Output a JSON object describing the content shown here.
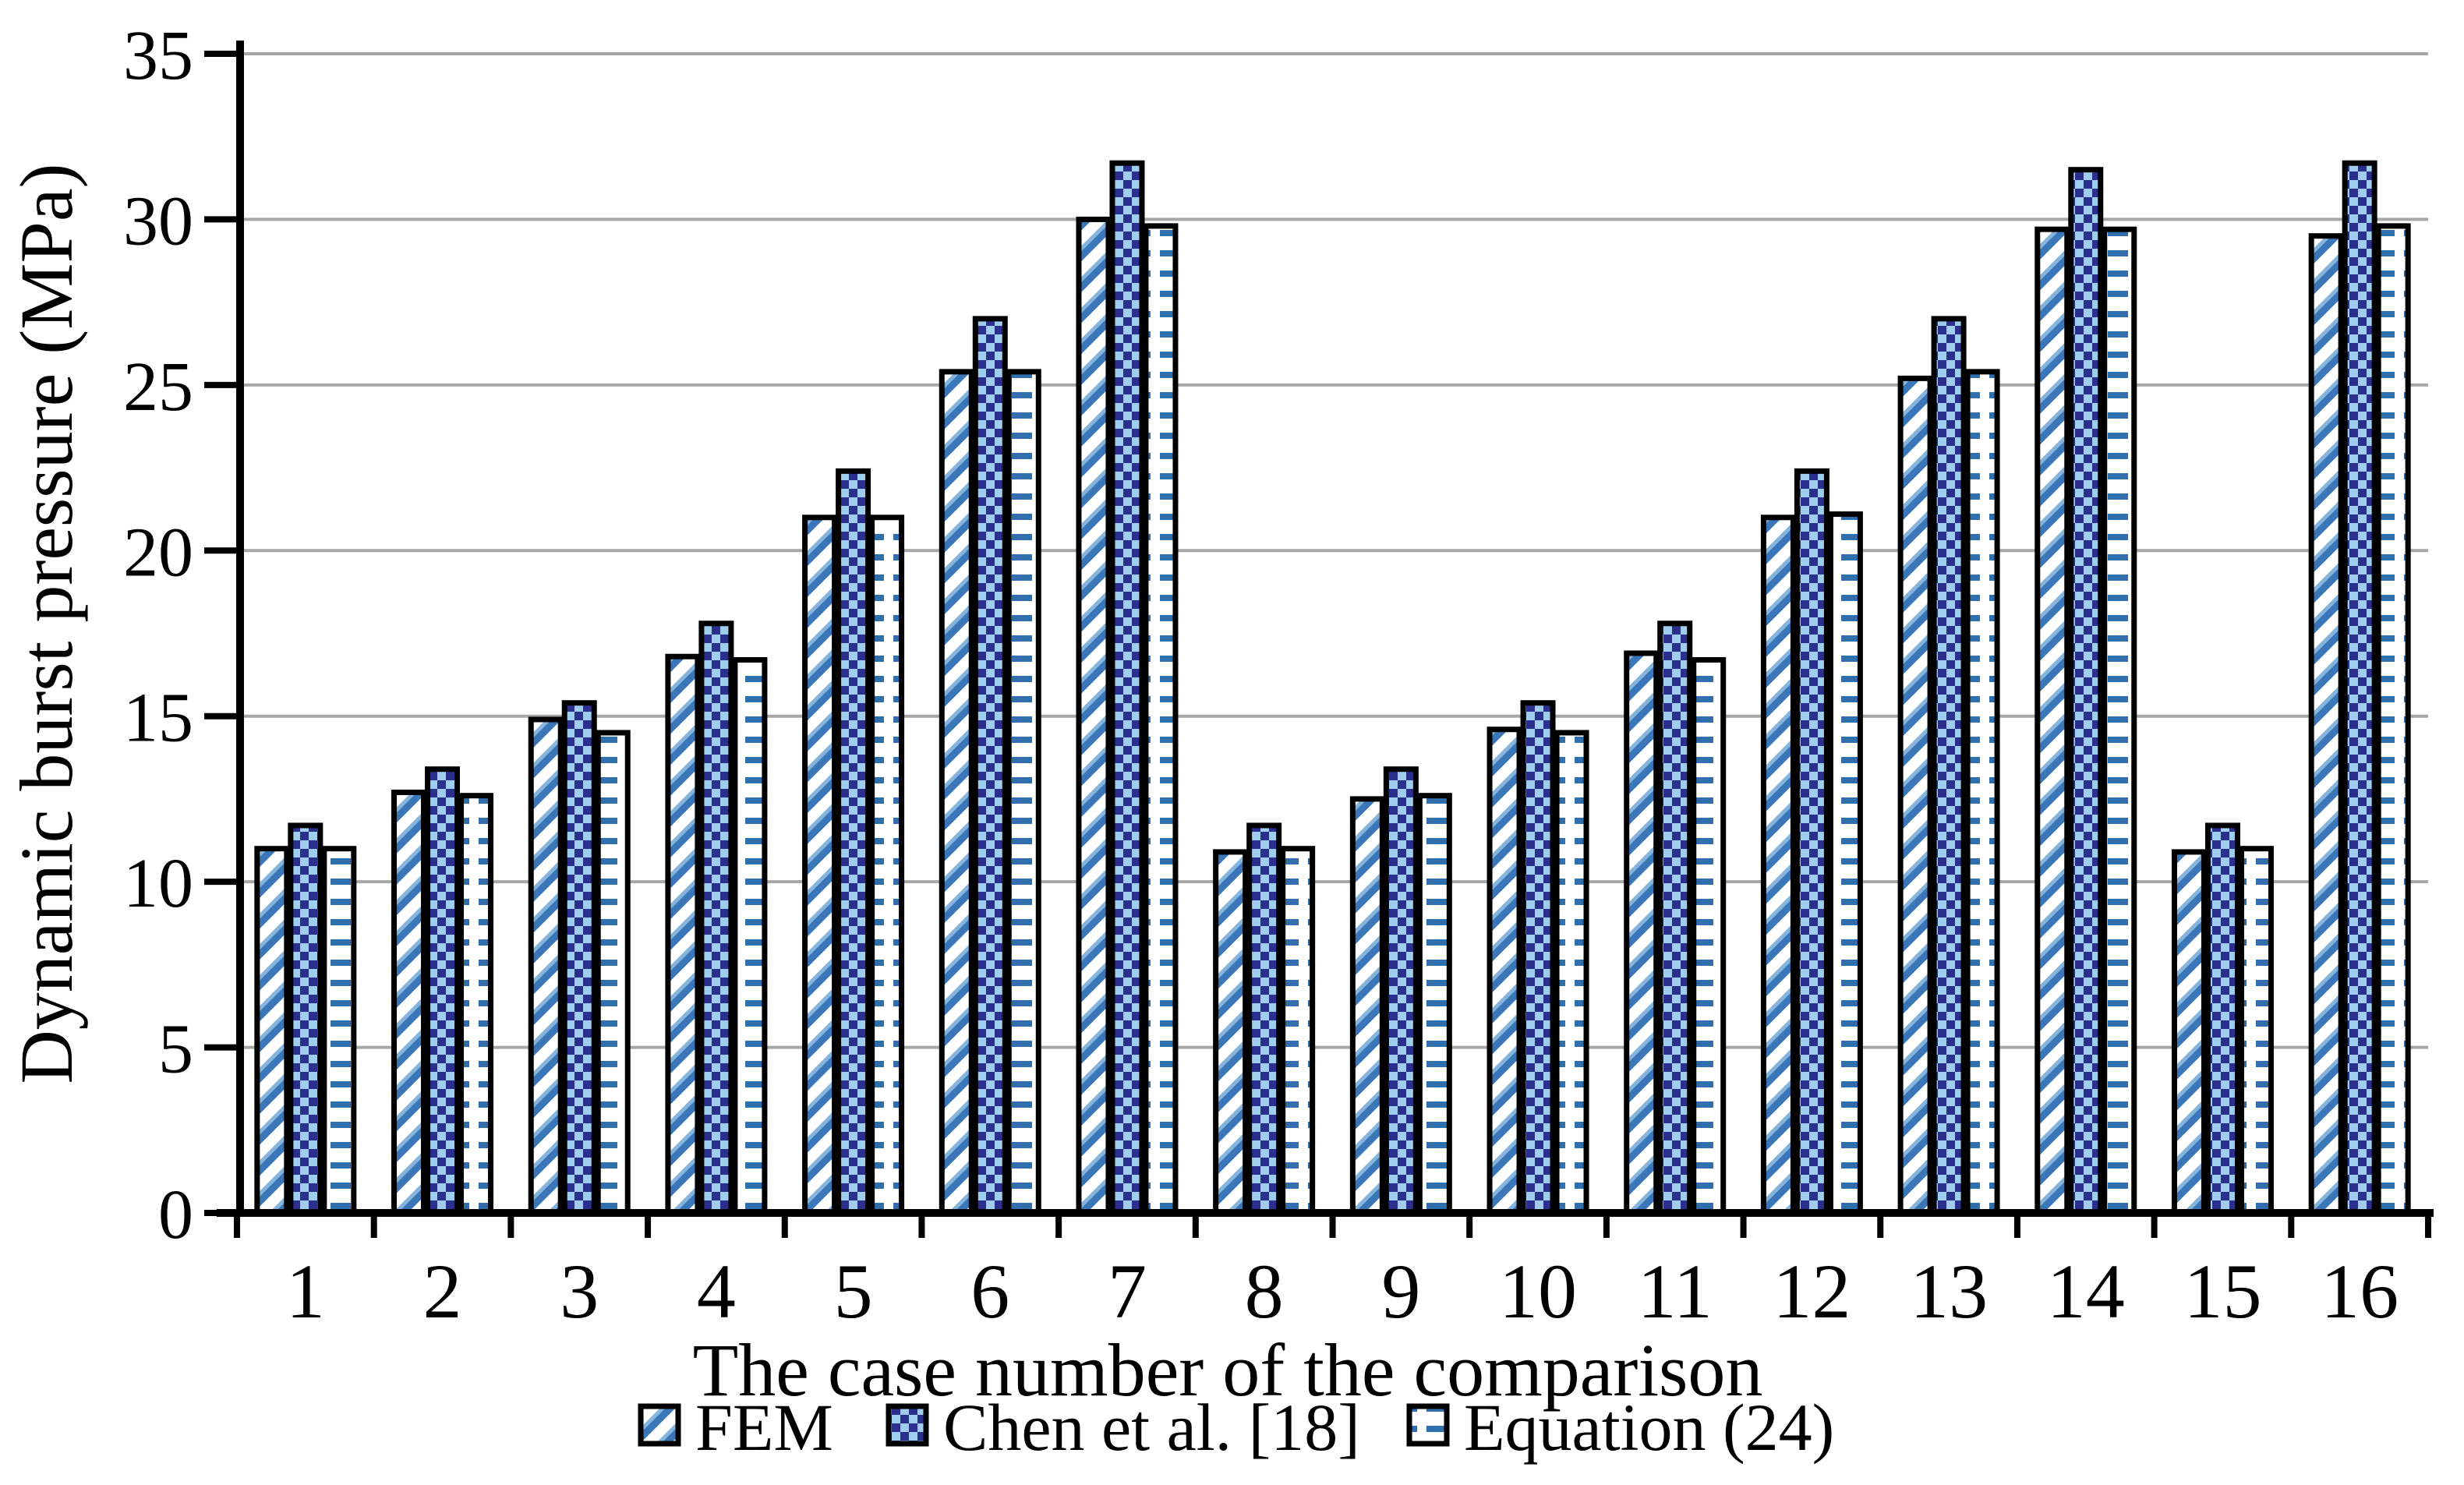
{
  "chart_data": {
    "type": "bar",
    "title": "",
    "xlabel": "The case number of the comparison",
    "ylabel": "Dynamic burst pressure (MPa)",
    "categories": [
      "1",
      "2",
      "3",
      "4",
      "5",
      "6",
      "7",
      "8",
      "9",
      "10",
      "11",
      "12",
      "13",
      "14",
      "15",
      "16"
    ],
    "ylim": [
      0,
      35
    ],
    "yticks": [
      0,
      5,
      10,
      15,
      20,
      25,
      30,
      35
    ],
    "grid": "horizontal-solid",
    "legend_position": "bottom-center",
    "series": [
      {
        "name": "FEM",
        "pattern": "diagonal-stripes",
        "values": [
          11.0,
          12.7,
          14.9,
          16.8,
          21.0,
          25.4,
          30.0,
          10.9,
          12.5,
          14.6,
          16.9,
          21.0,
          25.2,
          29.7,
          10.9,
          29.5
        ]
      },
      {
        "name": "Chen et al. [18]",
        "pattern": "blue-checker",
        "values": [
          11.7,
          13.4,
          15.4,
          17.8,
          22.4,
          27.0,
          31.7,
          11.7,
          13.4,
          15.4,
          17.8,
          22.4,
          27.0,
          31.5,
          11.7,
          31.7
        ]
      },
      {
        "name": "Equation (24)",
        "pattern": "horizontal-dashes",
        "values": [
          11.0,
          12.6,
          14.5,
          16.7,
          21.0,
          25.4,
          29.8,
          11.0,
          12.6,
          14.5,
          16.7,
          21.1,
          25.4,
          29.7,
          11.0,
          29.8
        ]
      }
    ],
    "colors": {
      "stripe_main": "#3b77b8",
      "stripe_light": "#85b5dd",
      "check_dark": "#2b2f8e",
      "check_light": "#9fcdee",
      "dash": "#2f6fad",
      "gridline": "#a7a7a7",
      "axis": "#000000",
      "bar_border": "#000000",
      "bar_background": "#ffffff"
    }
  }
}
